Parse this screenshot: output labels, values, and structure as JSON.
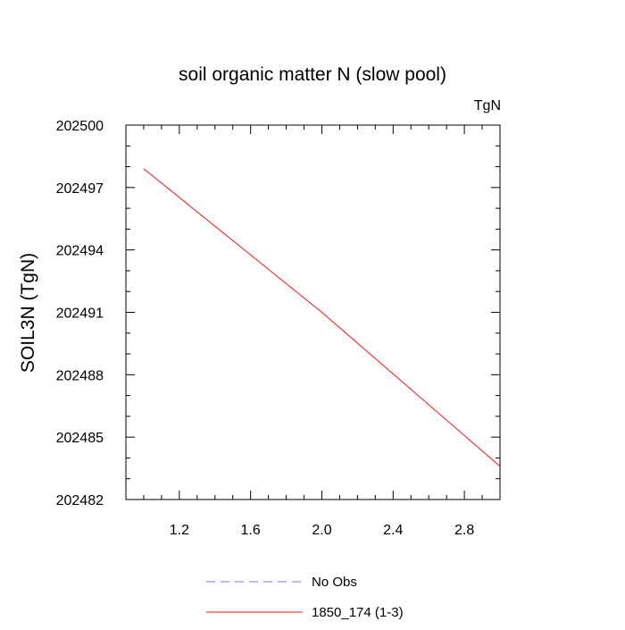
{
  "chart_data": {
    "type": "line",
    "title": "soil organic matter N (slow pool)",
    "units_label": "TgN",
    "xlabel": "",
    "ylabel": "SOIL3N  (TgN)",
    "xlim": [
      0.9,
      3.0
    ],
    "ylim": [
      202482,
      202500
    ],
    "x_ticks": [
      1.2,
      1.6,
      2.0,
      2.4,
      2.8
    ],
    "x_tick_labels": [
      "1.2",
      "1.6",
      "2.0",
      "2.4",
      "2.8"
    ],
    "y_ticks": [
      202482,
      202485,
      202488,
      202491,
      202494,
      202497,
      202500
    ],
    "y_tick_labels": [
      "202482",
      "202485",
      "202488",
      "202491",
      "202494",
      "202497",
      "202500"
    ],
    "grid": false,
    "legend_position": "bottom",
    "series": [
      {
        "name": "No Obs",
        "color": "#7777ee",
        "dash": "dashed",
        "x": [],
        "y": []
      },
      {
        "name": "1850_174 (1-3)",
        "color": "#ee1111",
        "dash": "solid",
        "x": [
          1.0,
          2.0,
          3.0
        ],
        "y": [
          202497.9,
          202491.0,
          202483.6
        ]
      }
    ]
  }
}
